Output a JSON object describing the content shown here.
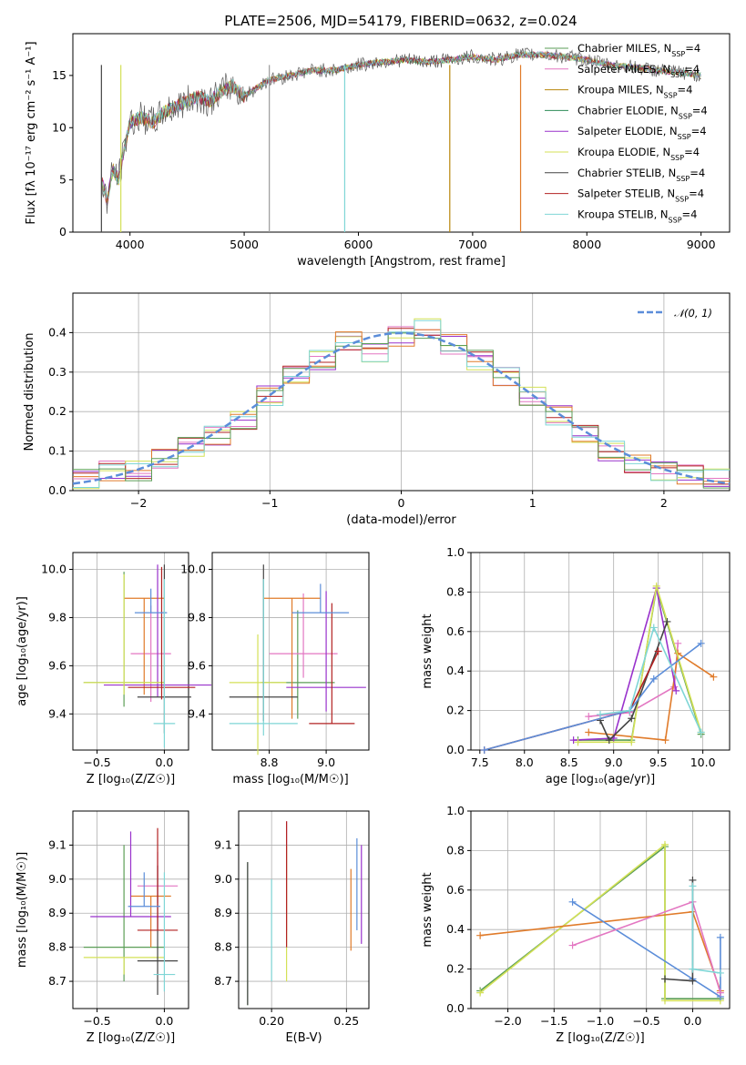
{
  "title": "PLATE=2506, MJD=54179, FIBERID=0632, z=0.024",
  "models": [
    {
      "name": "Chabrier MILES",
      "color": "#5b9e57"
    },
    {
      "name": "Salpeter MILES",
      "color": "#e377c2"
    },
    {
      "name": "Kroupa MILES",
      "color": "#b8860b"
    },
    {
      "name": "Chabrier ELODIE",
      "color": "#2e8b57"
    },
    {
      "name": "Salpeter ELODIE",
      "color": "#9932cc"
    },
    {
      "name": "Kroupa ELODIE",
      "color": "#d4e157"
    },
    {
      "name": "Chabrier STELIB",
      "color": "#444444"
    },
    {
      "name": "Salpeter STELIB",
      "color": "#b22222"
    },
    {
      "name": "Kroupa STELIB",
      "color": "#7fd6d6"
    }
  ],
  "legend_suffix": "N",
  "legend_sub": "SSP",
  "legend_eq": "=4",
  "chart_data": [
    {
      "type": "line",
      "id": "spectrum",
      "xlabel": "wavelength [Angstrom, rest frame]",
      "ylabel": "Flux [fλ 10⁻¹⁷ erg cm⁻² s⁻¹ A⁻¹]",
      "xlim": [
        3500,
        9250
      ],
      "ylim": [
        0,
        19
      ],
      "xticks": [
        4000,
        5000,
        6000,
        7000,
        8000,
        9000
      ],
      "yticks": [
        0,
        5,
        10,
        15
      ],
      "x": [
        3750,
        3800,
        3850,
        3900,
        3950,
        4000,
        4100,
        4200,
        4300,
        4400,
        4500,
        4600,
        4700,
        4800,
        4900,
        5000,
        5200,
        5400,
        5600,
        5800,
        6000,
        6200,
        6400,
        6600,
        6800,
        7000,
        7200,
        7400,
        7600,
        7800,
        8000,
        8200,
        8400,
        8600,
        8800,
        9000
      ],
      "y": [
        5,
        3,
        6,
        5,
        8,
        10.5,
        11,
        10.5,
        11.5,
        12,
        12.5,
        13,
        12.5,
        13.5,
        14,
        13,
        14.5,
        15,
        15.5,
        15.5,
        16,
        16.3,
        16.5,
        16.3,
        16.5,
        16.8,
        16.5,
        17,
        17,
        16.8,
        16.5,
        16,
        15.8,
        15.5,
        15.3,
        15
      ]
    },
    {
      "type": "bar",
      "id": "residuals",
      "xlabel": "(data-model)/error",
      "ylabel": "Normed distribution",
      "xlim": [
        -2.5,
        2.5
      ],
      "ylim": [
        0,
        0.5
      ],
      "xticks": [
        -2,
        -1,
        0,
        1,
        2
      ],
      "yticks": [
        0.0,
        0.1,
        0.2,
        0.3,
        0.4
      ],
      "legend": "𝒩(0, 1)",
      "bins": [
        -2.5,
        -2.3,
        -2.1,
        -1.9,
        -1.7,
        -1.5,
        -1.3,
        -1.1,
        -0.9,
        -0.7,
        -0.5,
        -0.3,
        -0.1,
        0.1,
        0.3,
        0.5,
        0.7,
        0.9,
        1.1,
        1.3,
        1.5,
        1.7,
        1.9,
        2.1,
        2.3
      ],
      "values": [
        0.03,
        0.05,
        0.05,
        0.08,
        0.11,
        0.14,
        0.18,
        0.24,
        0.29,
        0.33,
        0.38,
        0.35,
        0.39,
        0.41,
        0.37,
        0.33,
        0.29,
        0.24,
        0.19,
        0.14,
        0.1,
        0.07,
        0.05,
        0.04,
        0.03
      ]
    },
    {
      "type": "scatter",
      "id": "age-vs-Z",
      "xlabel": "Z [log₁₀(Z/Z☉)]",
      "ylabel": "age  [log₁₀(age/yr)]",
      "xlim": [
        -0.68,
        0.18
      ],
      "ylim": [
        9.25,
        10.07
      ],
      "xticks": [
        -0.5,
        0.0
      ],
      "yticks": [
        9.4,
        9.6,
        9.8,
        10.0
      ]
    },
    {
      "type": "scatter",
      "id": "age-vs-mass",
      "xlabel": "mass [log₁₀(M/M☉)]",
      "ylabel": "",
      "xlim": [
        8.6,
        9.15
      ],
      "ylim": [
        9.25,
        10.07
      ],
      "xticks": [
        8.8,
        9.0
      ],
      "yticks": [
        9.4,
        9.6,
        9.8,
        10.0
      ]
    },
    {
      "type": "line",
      "id": "massweight-vs-age",
      "xlabel": "age  [log₁₀(age/yr)]",
      "ylabel": "mass weight",
      "xlim": [
        7.4,
        10.3
      ],
      "ylim": [
        0,
        1
      ],
      "xticks": [
        7.5,
        8.0,
        8.5,
        9.0,
        9.5,
        10.0
      ],
      "yticks": [
        0.0,
        0.2,
        0.4,
        0.6,
        0.8,
        1.0
      ],
      "series": [
        {
          "color": "#5b9e57",
          "x": [
            8.6,
            9.2,
            9.48,
            9.98
          ],
          "y": [
            0.05,
            0.05,
            0.82,
            0.08
          ]
        },
        {
          "color": "#e377c2",
          "x": [
            8.72,
            9.18,
            9.68,
            9.72
          ],
          "y": [
            0.17,
            0.19,
            0.32,
            0.54
          ]
        },
        {
          "color": "#e07b2a",
          "x": [
            8.72,
            9.58,
            9.72,
            10.12
          ],
          "y": [
            0.09,
            0.05,
            0.49,
            0.37
          ]
        },
        {
          "color": "#9932cc",
          "x": [
            8.55,
            9.0,
            9.48,
            9.7
          ],
          "y": [
            0.05,
            0.06,
            0.82,
            0.3
          ]
        },
        {
          "color": "#d4e157",
          "x": [
            8.6,
            9.2,
            9.48,
            9.98
          ],
          "y": [
            0.04,
            0.04,
            0.83,
            0.09
          ]
        },
        {
          "color": "#444444",
          "x": [
            8.85,
            8.95,
            9.2,
            9.6
          ],
          "y": [
            0.15,
            0.05,
            0.16,
            0.65
          ]
        },
        {
          "color": "#b22222",
          "x": [
            7.55,
            9.18,
            9.5
          ],
          "y": [
            0.0,
            0.2,
            0.5
          ]
        },
        {
          "color": "#5b8dd9",
          "x": [
            7.55,
            9.18,
            9.45,
            9.98
          ],
          "y": [
            0.0,
            0.2,
            0.36,
            0.54
          ]
        },
        {
          "color": "#7fd6d6",
          "x": [
            8.85,
            9.18,
            9.45,
            9.98
          ],
          "y": [
            0.18,
            0.2,
            0.62,
            0.09
          ]
        }
      ]
    },
    {
      "type": "scatter",
      "id": "mass-vs-Z",
      "xlabel": "Z [log₁₀(Z/Z☉)]",
      "ylabel": "mass [log₁₀(M/M☉)]",
      "xlim": [
        -0.68,
        0.18
      ],
      "ylim": [
        8.62,
        9.2
      ],
      "xticks": [
        -0.5,
        0.0
      ],
      "yticks": [
        8.7,
        8.8,
        8.9,
        9.0,
        9.1
      ]
    },
    {
      "type": "scatter",
      "id": "mass-vs-EBV",
      "xlabel": "E(B-V)",
      "ylabel": "",
      "xlim": [
        0.178,
        0.265
      ],
      "ylim": [
        8.62,
        9.2
      ],
      "xticks": [
        0.2,
        0.25
      ],
      "yticks": [
        8.7,
        8.8,
        8.9,
        9.0,
        9.1
      ]
    },
    {
      "type": "line",
      "id": "massweight-vs-Z",
      "xlabel": "Z [log₁₀(Z/Z☉)]",
      "ylabel": "mass weight",
      "xlim": [
        -2.4,
        0.4
      ],
      "ylim": [
        0,
        1
      ],
      "xticks": [
        -2.0,
        -1.5,
        -1.0,
        -0.5,
        0.0
      ],
      "yticks": [
        0.0,
        0.2,
        0.4,
        0.6,
        0.8,
        1.0
      ],
      "series": [
        {
          "color": "#5b9e57",
          "x": [
            -2.3,
            -0.3,
            -0.3,
            0.3
          ],
          "y": [
            0.09,
            0.82,
            0.05,
            0.05
          ]
        },
        {
          "color": "#d4e157",
          "x": [
            -2.3,
            -0.3,
            -0.3,
            0.3
          ],
          "y": [
            0.08,
            0.83,
            0.04,
            0.04
          ]
        },
        {
          "color": "#e07b2a",
          "x": [
            -2.3,
            0.0,
            0.3
          ],
          "y": [
            0.37,
            0.49,
            0.09
          ]
        },
        {
          "color": "#5b8dd9",
          "x": [
            -1.3,
            0.0,
            0.3,
            0.3
          ],
          "y": [
            0.54,
            0.15,
            0.06,
            0.36
          ]
        },
        {
          "color": "#e377c2",
          "x": [
            -1.3,
            0.0,
            0.3
          ],
          "y": [
            0.32,
            0.54,
            0.08
          ]
        },
        {
          "color": "#444444",
          "x": [
            -0.3,
            0.0,
            0.0
          ],
          "y": [
            0.15,
            0.14,
            0.65
          ]
        },
        {
          "color": "#7fd6d6",
          "x": [
            0.0,
            0.0,
            0.3
          ],
          "y": [
            0.62,
            0.2,
            0.18
          ]
        }
      ]
    }
  ]
}
